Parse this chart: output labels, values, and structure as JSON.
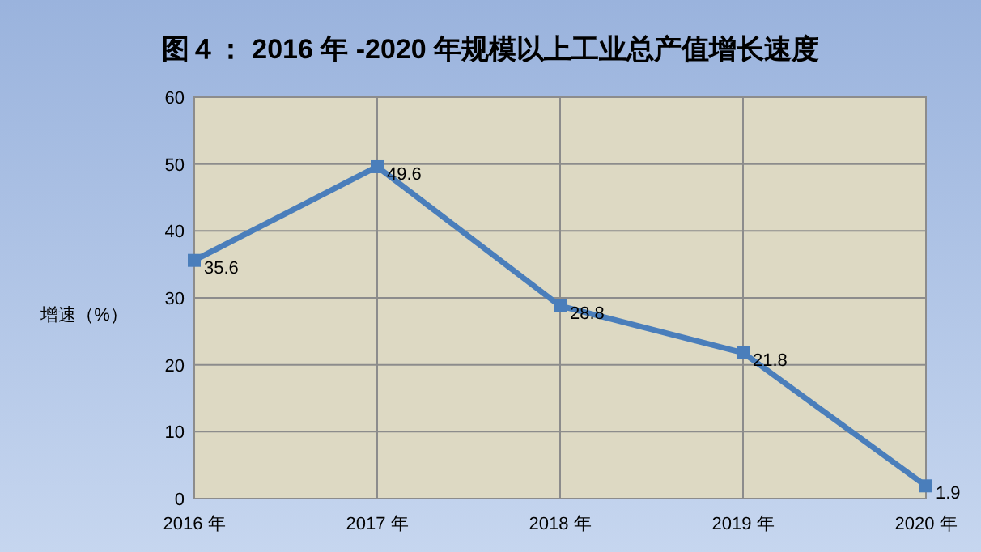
{
  "chart_data": {
    "type": "line",
    "title": "图４： 2016 年 -2020 年规模以上工业总产值增长速度",
    "ylabel": "增速（%）",
    "categories": [
      "2016 年",
      "2017 年",
      "2018 年",
      "2019 年",
      "2020 年"
    ],
    "series": [
      {
        "color": "#4a7ebb",
        "values": [
          35.6,
          49.6,
          28.8,
          21.8,
          1.9
        ]
      }
    ],
    "ylim": [
      0,
      60
    ],
    "yticks": [
      0,
      10,
      20,
      30,
      40,
      50,
      60
    ],
    "grid": true,
    "marker": "square",
    "data_labels": true
  }
}
